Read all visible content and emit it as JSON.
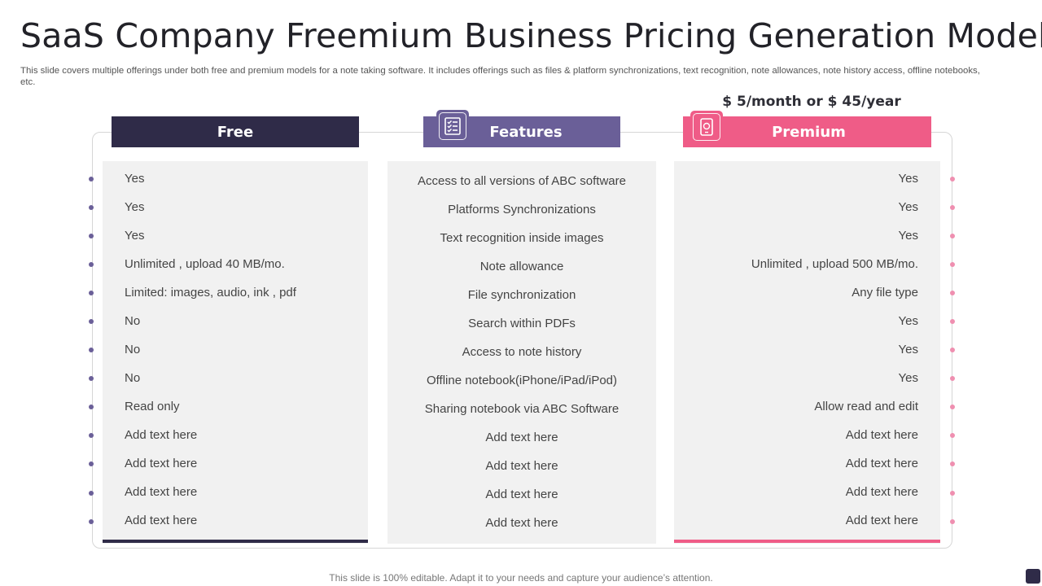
{
  "title": "SaaS Company Freemium Business Pricing Generation Model",
  "subtitle": "This slide covers multiple offerings under both free and premium models for a note taking software. It includes offerings such as files & platform synchronizations, text recognition, note allowances, note history access, offline notebooks, etc.",
  "price": "$ 5/month or $ 45/year",
  "columns": {
    "free": {
      "header": "Free",
      "rows": [
        "Yes",
        "Yes",
        "Yes",
        "Unlimited , upload 40 MB/mo.",
        "Limited: images, audio, ink , pdf",
        "No",
        "No",
        "No",
        "Read only",
        "Add text here",
        "Add text here",
        "Add text here",
        "Add text here"
      ]
    },
    "features": {
      "header": "Features",
      "icon": "checklist-icon",
      "rows": [
        "Access to all versions of ABC software",
        "Platforms Synchronizations",
        "Text recognition inside images",
        "Note allowance",
        "File synchronization",
        "Search within PDFs",
        "Access to note history",
        "Offline notebook(iPhone/iPad/iPod)",
        "Sharing notebook via ABC Software",
        "Add text here",
        "Add text here",
        "Add text here",
        "Add text here"
      ]
    },
    "premium": {
      "header": "Premium",
      "icon": "premium-tablet-icon",
      "rows": [
        "Yes",
        "Yes",
        "Yes",
        "Unlimited , upload 500 MB/mo.",
        "Any file type",
        "Yes",
        "Yes",
        "Yes",
        "Allow read and edit",
        "Add text here",
        "Add text here",
        "Add text here",
        "Add text here"
      ]
    }
  },
  "footer": "This slide is 100% editable. Adapt it to your needs and capture your audience’s attention.",
  "colors": {
    "free": "#2f2b48",
    "features": "#6a5f98",
    "premium": "#ef5c87"
  }
}
